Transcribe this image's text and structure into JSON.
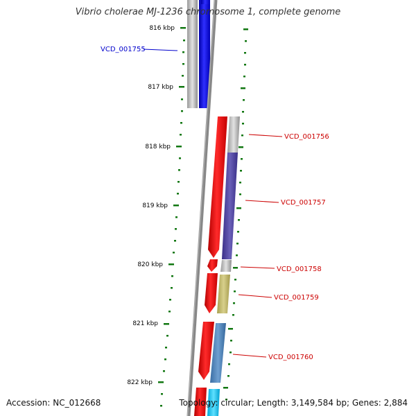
{
  "title": "Vibrio cholerae MJ-1236 chromosome 1, complete genome",
  "footer": {
    "accession": "Accession: NC_012668",
    "summary": "Topology: circular; Length: 3,149,584 bp; Genes: 2,884"
  },
  "ruler": {
    "unit": "kbp",
    "ticks": [
      {
        "kbp": 816,
        "label": "816 kbp"
      },
      {
        "kbp": 817,
        "label": "817 kbp"
      },
      {
        "kbp": 818,
        "label": "818 kbp"
      },
      {
        "kbp": 819,
        "label": "819 kbp"
      },
      {
        "kbp": 820,
        "label": "820 kbp"
      },
      {
        "kbp": 821,
        "label": "821 kbp"
      },
      {
        "kbp": 822,
        "label": "822 kbp"
      }
    ]
  },
  "genes": [
    {
      "label": "VCD_001755",
      "color": "#0000cc",
      "strand": "outer"
    },
    {
      "label": "VCD_001756",
      "color": "#cc0000",
      "strand": "inner"
    },
    {
      "label": "VCD_001757",
      "color": "#cc0000",
      "strand": "inner"
    },
    {
      "label": "VCD_001758",
      "color": "#cc0000",
      "strand": "inner"
    },
    {
      "label": "VCD_001759",
      "color": "#cc0000",
      "strand": "inner"
    },
    {
      "label": "VCD_001760",
      "color": "#cc0000",
      "strand": "inner"
    }
  ],
  "colors": {
    "backbone": "#888888",
    "forward_cds": "#0000ee",
    "reverse_cds": "#ee0000",
    "ruler_tick": "#117711",
    "cog_gray": "#b8b8b8",
    "cog_purple": "#4a3f9a",
    "cog_olive": "#bdb46a",
    "cog_steelblue": "#4a7fb5",
    "cog_cyan": "#18c8f0"
  }
}
